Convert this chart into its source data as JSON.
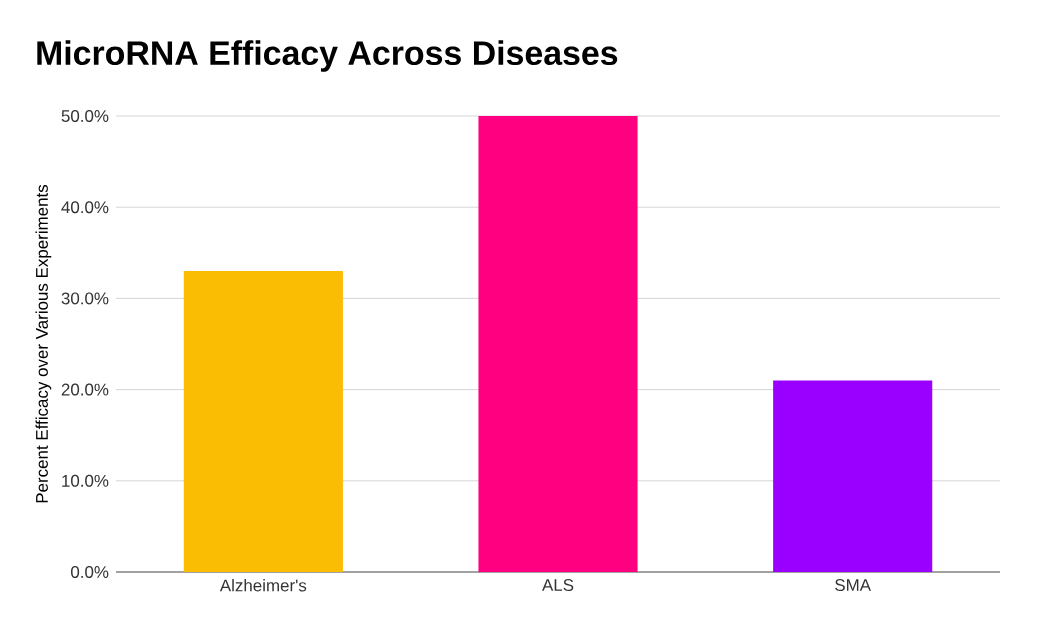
{
  "chart_data": {
    "type": "bar",
    "title": "MicroRNA Efficacy Across Diseases",
    "ylabel": "Percent Efficacy over Various Experiments",
    "categories": [
      "Alzheimer's",
      "ALS",
      "SMA"
    ],
    "values": [
      33,
      50,
      21
    ],
    "colors": [
      "#fbbc04",
      "#ff0080",
      "#9900ff"
    ],
    "ylim": [
      0,
      50
    ],
    "yticks": [
      {
        "value": 0,
        "label": "0.0%"
      },
      {
        "value": 10,
        "label": "10.0%"
      },
      {
        "value": 20,
        "label": "20.0%"
      },
      {
        "value": 30,
        "label": "30.0%"
      },
      {
        "value": 40,
        "label": "40.0%"
      },
      {
        "value": 50,
        "label": "50.0%"
      }
    ],
    "grid": "y"
  }
}
